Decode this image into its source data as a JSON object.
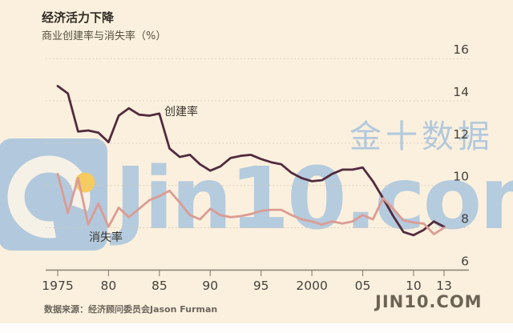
{
  "header": {
    "title": "经济活力下降",
    "subtitle": "商业创建率与消失率（%）"
  },
  "footer": {
    "source": "数据来源：经济顾问委员会Jason Furman",
    "site": "JIN10.COM"
  },
  "watermark": {
    "brand_cn": "金十数据",
    "brand_site": "Jin10.com",
    "color": "#b5cbde",
    "logo_accent": "#f6cb5f"
  },
  "chart_data": {
    "type": "line",
    "title": "经济活力下降",
    "subtitle": "商业创建率与消失率（%）",
    "x_start": 1975,
    "x_end": 2013,
    "x": [
      1975,
      1976,
      1977,
      1978,
      1979,
      1980,
      1981,
      1982,
      1983,
      1984,
      1985,
      1986,
      1987,
      1988,
      1989,
      1990,
      1991,
      1992,
      1993,
      1994,
      1995,
      1996,
      1997,
      1998,
      1999,
      2000,
      2001,
      2002,
      2003,
      2004,
      2005,
      2006,
      2007,
      2008,
      2009,
      2010,
      2011,
      2012,
      2013
    ],
    "series": [
      {
        "name": "创建率",
        "color": "#522b3e",
        "values": [
          14.7,
          14.35,
          12.55,
          12.6,
          12.5,
          12.05,
          13.3,
          13.65,
          13.35,
          13.3,
          13.4,
          11.75,
          11.35,
          11.45,
          11.0,
          10.7,
          10.9,
          11.3,
          11.4,
          11.45,
          11.25,
          11.1,
          11.0,
          10.6,
          10.35,
          10.2,
          10.25,
          10.55,
          10.75,
          10.75,
          10.85,
          10.2,
          9.4,
          8.55,
          7.8,
          7.65,
          7.9,
          8.3,
          8.05
        ]
      },
      {
        "name": "消失率",
        "color": "#db9c94",
        "values": [
          10.55,
          8.7,
          10.35,
          8.15,
          9.15,
          8.05,
          8.95,
          8.5,
          8.9,
          9.3,
          9.5,
          9.75,
          9.2,
          8.6,
          8.4,
          8.9,
          8.6,
          8.5,
          8.55,
          8.65,
          8.8,
          8.85,
          8.85,
          8.6,
          8.4,
          8.3,
          8.15,
          8.3,
          8.2,
          8.3,
          8.6,
          8.4,
          9.4,
          8.9,
          8.35,
          8.25,
          8.2,
          7.7,
          8.0
        ]
      }
    ],
    "xticks": [
      {
        "label": "1975",
        "year": 1975
      },
      {
        "label": "80",
        "year": 1980
      },
      {
        "label": "85",
        "year": 1985
      },
      {
        "label": "90",
        "year": 1990
      },
      {
        "label": "95",
        "year": 1995
      },
      {
        "label": "2000",
        "year": 2000
      },
      {
        "label": "05",
        "year": 2005
      },
      {
        "label": "10",
        "year": 2010
      },
      {
        "label": "13",
        "year": 2013
      }
    ],
    "yticks": [
      6,
      8,
      10,
      12,
      14,
      16
    ],
    "ylim": [
      6,
      16.5
    ],
    "grid": "dotted-horizontal",
    "legend_position": "inline-labels",
    "axis_color": "#8d867b",
    "grid_color": "#d7cab4",
    "tick_label_color": "#45423c"
  }
}
